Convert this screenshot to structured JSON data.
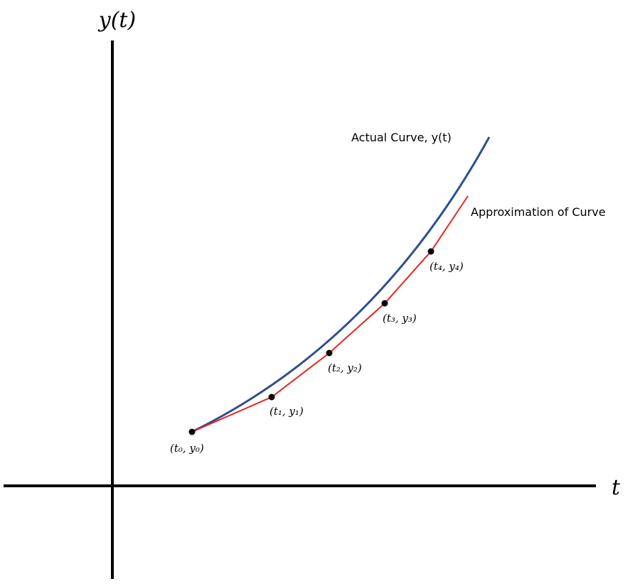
{
  "axes": {
    "y_label": "y(t)",
    "x_label": "t"
  },
  "curves": {
    "actual": "Actual Curve, y(t)",
    "approximation": "Approximation of Curve"
  },
  "points": [
    "(t₀, y₀)",
    "(t₁, y₁)",
    "(t₂, y₂)",
    "(t₃, y₃)",
    "(t₄, y₄)"
  ]
}
